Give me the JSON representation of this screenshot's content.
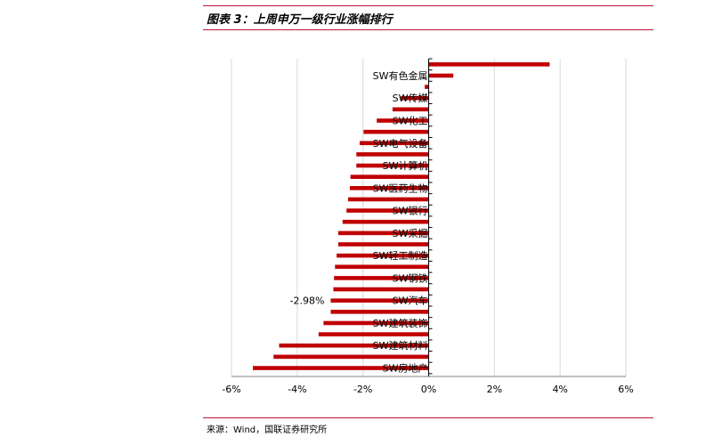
{
  "header": {
    "title": "图表 3：上周申万一级行业涨幅排行"
  },
  "footer": {
    "source": "来源：Wind，国联证券研究所"
  },
  "colors": {
    "bar": "#c00000",
    "rule": "#c0143c",
    "grid": "#d9d9d9"
  },
  "chart_data": {
    "type": "bar",
    "orientation": "horizontal",
    "title": "上周申万一级行业涨幅排行",
    "xlabel": "",
    "ylabel": "",
    "xlim": [
      -6,
      6
    ],
    "x_ticks": [
      "-6%",
      "-4%",
      "-2%",
      "0%",
      "2%",
      "4%",
      "6%"
    ],
    "grid": true,
    "categories": [
      "",
      "SW有色金属",
      "",
      "SW传媒",
      "",
      "SW化工",
      "",
      "SW电气设备",
      "",
      "SW计算机",
      "",
      "SW医药生物",
      "",
      "SW银行",
      "",
      "SW采掘",
      "",
      "SW轻工制造",
      "",
      "SW钢铁",
      "",
      "SW汽车",
      "",
      "SW建筑装饰",
      "",
      "SW建筑材料",
      "",
      "SW房地产"
    ],
    "values": [
      3.68,
      0.75,
      -0.12,
      -0.85,
      -1.1,
      -1.58,
      -1.98,
      -2.1,
      -2.2,
      -2.2,
      -2.38,
      -2.4,
      -2.45,
      -2.5,
      -2.62,
      -2.75,
      -2.75,
      -2.8,
      -2.85,
      -2.88,
      -2.9,
      -2.98,
      -2.98,
      -3.2,
      -3.35,
      -4.55,
      -4.72,
      -5.35
    ],
    "annotations": [
      {
        "label": "-2.98%",
        "category_index": 21
      }
    ]
  }
}
